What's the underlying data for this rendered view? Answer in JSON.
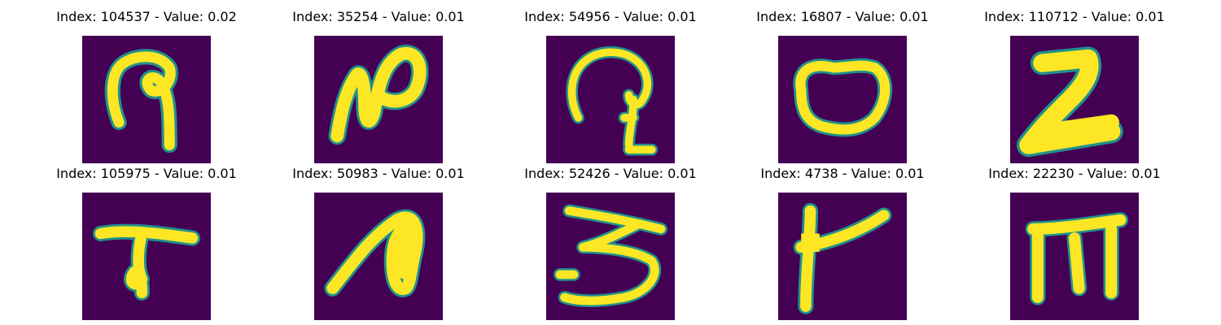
{
  "figure": {
    "background_color": "#440154",
    "stroke_color": "#fde725",
    "edge_color": "#21918c",
    "panels": [
      {
        "title": "Index: 104537 - Value: 0.02",
        "glyph": "curl-loop-hook"
      },
      {
        "title": "Index: 35254 - Value: 0.01",
        "glyph": "zigzag-loop"
      },
      {
        "title": "Index: 54956 - Value: 0.01",
        "glyph": "arch-with-hook"
      },
      {
        "title": "Index: 16807 - Value: 0.01",
        "glyph": "oval-ring"
      },
      {
        "title": "Index: 110712 - Value: 0.01",
        "glyph": "thick-z"
      },
      {
        "title": "Index: 105975 - Value: 0.01",
        "glyph": "t-bar-hook"
      },
      {
        "title": "Index: 50983 - Value: 0.01",
        "glyph": "inverted-v-blob"
      },
      {
        "title": "Index: 52426 - Value: 0.01",
        "glyph": "three-shape"
      },
      {
        "title": "Index: 4738 - Value: 0.01",
        "glyph": "l-shape-slant"
      },
      {
        "title": "Index: 22230 - Value: 0.01",
        "glyph": "m-shape"
      }
    ]
  }
}
